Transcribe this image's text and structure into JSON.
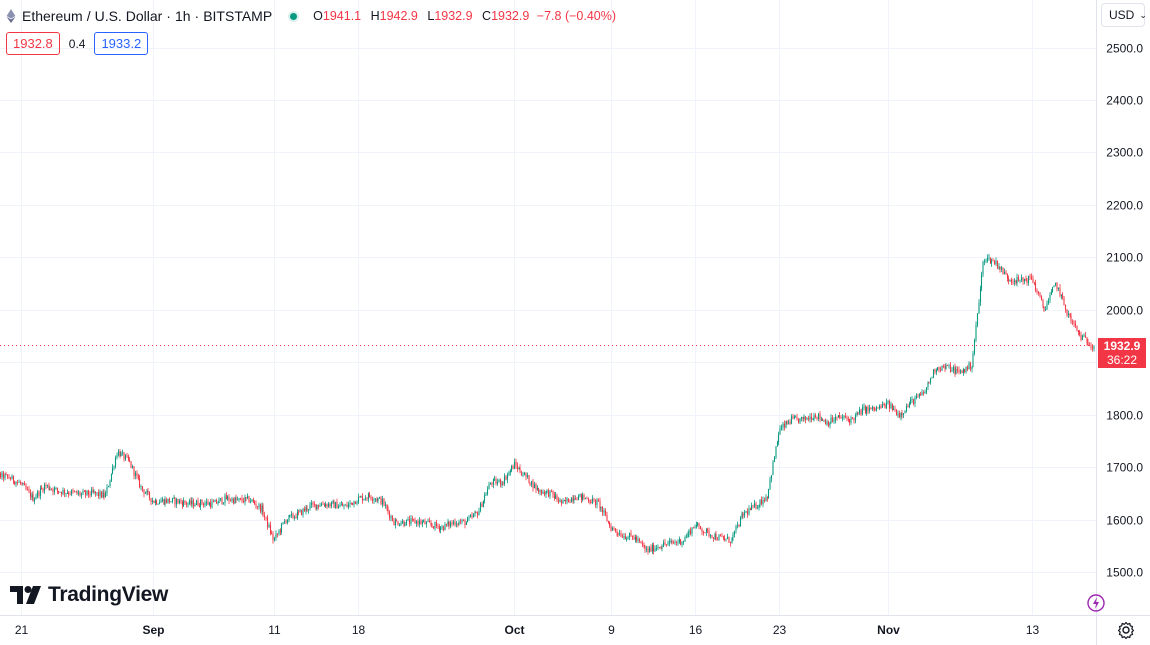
{
  "header": {
    "symbol": "Ethereum",
    "pair": "U.S. Dollar",
    "interval": "1h",
    "exchange": "BITSTAMP",
    "sep": "/",
    "dot_sep": "·"
  },
  "ohlc": {
    "o_label": "O",
    "o_value": "1941.1",
    "h_label": "H",
    "h_value": "1942.9",
    "l_label": "L",
    "l_value": "1932.9",
    "c_label": "C",
    "c_value": "1932.9",
    "change": "−7.8 (−0.40%)"
  },
  "quote": {
    "bid": "1932.8",
    "spread": "0.4",
    "ask": "1933.2"
  },
  "currency": {
    "label": "USD"
  },
  "last_price": {
    "value": "1932.9",
    "countdown": "36:22"
  },
  "branding": {
    "name": "TradingView"
  },
  "colors": {
    "up": "#089981",
    "down": "#f23645",
    "bid": "#f23645",
    "ask": "#2962ff"
  },
  "chart_data": {
    "type": "candlestick",
    "interval": "1h",
    "ylim": [
      1450,
      2545
    ],
    "y_ticks": [
      1500.0,
      1600.0,
      1700.0,
      1800.0,
      1900.0,
      2000.0,
      2100.0,
      2200.0,
      2300.0,
      2400.0,
      2500.0
    ],
    "y_tick_labels": [
      "1500.0",
      "1600.0",
      "1700.0",
      "1800.0",
      "1900.0",
      "2000.0",
      "2100.0",
      "2200.0",
      "2300.0",
      "2400.0",
      "2500.0"
    ],
    "x_tick_labels": [
      "21",
      "Sep",
      "11",
      "18",
      "Oct",
      "9",
      "16",
      "23",
      "Nov",
      "13"
    ],
    "x_tick_dates": [
      "2023-08-21",
      "2023-09-01",
      "2023-09-11",
      "2023-09-18",
      "2023-10-01",
      "2023-10-09",
      "2023-10-16",
      "2023-10-23",
      "2023-11-01",
      "2023-11-13"
    ],
    "last_price": 1932.9,
    "grid": true,
    "close_path": [
      [
        "2023-08-18",
        1670
      ],
      [
        "2023-08-19",
        1685
      ],
      [
        "2023-08-20",
        1680
      ],
      [
        "2023-08-21",
        1668
      ],
      [
        "2023-08-22",
        1640
      ],
      [
        "2023-08-23",
        1665
      ],
      [
        "2023-08-24",
        1655
      ],
      [
        "2023-08-25",
        1652
      ],
      [
        "2023-08-26",
        1648
      ],
      [
        "2023-08-27",
        1650
      ],
      [
        "2023-08-28",
        1645
      ],
      [
        "2023-08-29",
        1730
      ],
      [
        "2023-08-30",
        1710
      ],
      [
        "2023-08-31",
        1660
      ],
      [
        "2023-09-01",
        1635
      ],
      [
        "2023-09-02",
        1636
      ],
      [
        "2023-09-03",
        1635
      ],
      [
        "2023-09-04",
        1630
      ],
      [
        "2023-09-05",
        1632
      ],
      [
        "2023-09-06",
        1630
      ],
      [
        "2023-09-07",
        1640
      ],
      [
        "2023-09-08",
        1636
      ],
      [
        "2023-09-09",
        1638
      ],
      [
        "2023-09-10",
        1620
      ],
      [
        "2023-09-11",
        1560
      ],
      [
        "2023-09-12",
        1600
      ],
      [
        "2023-09-13",
        1610
      ],
      [
        "2023-09-14",
        1625
      ],
      [
        "2023-09-15",
        1630
      ],
      [
        "2023-09-16",
        1628
      ],
      [
        "2023-09-17",
        1625
      ],
      [
        "2023-09-18",
        1640
      ],
      [
        "2023-09-19",
        1645
      ],
      [
        "2023-09-20",
        1635
      ],
      [
        "2023-09-21",
        1595
      ],
      [
        "2023-09-22",
        1595
      ],
      [
        "2023-09-23",
        1596
      ],
      [
        "2023-09-24",
        1590
      ],
      [
        "2023-09-25",
        1585
      ],
      [
        "2023-09-26",
        1595
      ],
      [
        "2023-09-27",
        1595
      ],
      [
        "2023-09-28",
        1615
      ],
      [
        "2023-09-29",
        1670
      ],
      [
        "2023-09-30",
        1672
      ],
      [
        "2023-10-01",
        1705
      ],
      [
        "2023-10-02",
        1680
      ],
      [
        "2023-10-03",
        1655
      ],
      [
        "2023-10-04",
        1650
      ],
      [
        "2023-10-05",
        1630
      ],
      [
        "2023-10-06",
        1645
      ],
      [
        "2023-10-07",
        1640
      ],
      [
        "2023-10-08",
        1630
      ],
      [
        "2023-10-09",
        1585
      ],
      [
        "2023-10-10",
        1570
      ],
      [
        "2023-10-11",
        1565
      ],
      [
        "2023-10-12",
        1540
      ],
      [
        "2023-10-13",
        1550
      ],
      [
        "2023-10-14",
        1555
      ],
      [
        "2023-10-15",
        1560
      ],
      [
        "2023-10-16",
        1590
      ],
      [
        "2023-10-17",
        1575
      ],
      [
        "2023-10-18",
        1565
      ],
      [
        "2023-10-19",
        1560
      ],
      [
        "2023-10-20",
        1610
      ],
      [
        "2023-10-21",
        1625
      ],
      [
        "2023-10-22",
        1645
      ],
      [
        "2023-10-23",
        1770
      ],
      [
        "2023-10-24",
        1790
      ],
      [
        "2023-10-25",
        1790
      ],
      [
        "2023-10-26",
        1800
      ],
      [
        "2023-10-27",
        1785
      ],
      [
        "2023-10-28",
        1795
      ],
      [
        "2023-10-29",
        1790
      ],
      [
        "2023-10-30",
        1810
      ],
      [
        "2023-10-31",
        1810
      ],
      [
        "2023-11-01",
        1820
      ],
      [
        "2023-11-02",
        1800
      ],
      [
        "2023-11-03",
        1825
      ],
      [
        "2023-11-04",
        1840
      ],
      [
        "2023-11-05",
        1890
      ],
      [
        "2023-11-06",
        1890
      ],
      [
        "2023-11-07",
        1880
      ],
      [
        "2023-11-08",
        1895
      ],
      [
        "2023-11-09",
        2100
      ],
      [
        "2023-11-10",
        2090
      ],
      [
        "2023-11-11",
        2060
      ],
      [
        "2023-11-12",
        2055
      ],
      [
        "2023-11-13",
        2060
      ],
      [
        "2023-11-14",
        2000
      ],
      [
        "2023-11-15",
        2050
      ],
      [
        "2023-11-16",
        1990
      ],
      [
        "2023-11-17",
        1950
      ],
      [
        "2023-11-18",
        1932.9
      ]
    ]
  }
}
